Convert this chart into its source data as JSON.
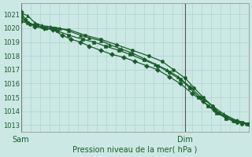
{
  "xlabel": "Pression niveau de la mer( hPa )",
  "bg_color": "#cce8e4",
  "grid_color": "#aad4cc",
  "line_color": "#1a5c2a",
  "spine_color": "#888888",
  "ylim": [
    1012.5,
    1021.8
  ],
  "yticks": [
    1013,
    1014,
    1015,
    1016,
    1017,
    1018,
    1019,
    1020,
    1021
  ],
  "xtick_labels": [
    "Sam",
    "Dim"
  ],
  "xtick_positions": [
    0.0,
    0.72
  ],
  "xlim": [
    0.0,
    1.0
  ],
  "series": [
    {
      "x": [
        0.0,
        0.02,
        0.06,
        0.1,
        0.14,
        0.18,
        0.22,
        0.26,
        0.3,
        0.35,
        0.4,
        0.45,
        0.5,
        0.55,
        0.6,
        0.65,
        0.7,
        0.75,
        0.8,
        0.85,
        0.9,
        0.95,
        1.0
      ],
      "y": [
        1021.2,
        1020.6,
        1020.1,
        1020.0,
        1019.9,
        1019.5,
        1019.2,
        1019.0,
        1018.7,
        1018.4,
        1018.1,
        1017.9,
        1017.6,
        1017.3,
        1017.0,
        1016.5,
        1016.0,
        1015.3,
        1014.7,
        1014.1,
        1013.6,
        1013.3,
        1013.1
      ],
      "marker": "D"
    },
    {
      "x": [
        0.0,
        0.03,
        0.06,
        0.09,
        0.13,
        0.17,
        0.21,
        0.26,
        0.3,
        0.35,
        0.39,
        0.44,
        0.49,
        0.54,
        0.59,
        0.64,
        0.69,
        0.74,
        0.79,
        0.84,
        0.89,
        0.95,
        1.0
      ],
      "y": [
        1021.1,
        1020.9,
        1020.4,
        1020.2,
        1020.1,
        1020.0,
        1019.8,
        1019.5,
        1019.3,
        1019.1,
        1018.8,
        1018.5,
        1018.2,
        1017.8,
        1017.4,
        1017.0,
        1016.5,
        1015.8,
        1015.0,
        1014.4,
        1013.8,
        1013.3,
        1013.1
      ],
      "marker": "^"
    },
    {
      "x": [
        0.0,
        0.03,
        0.07,
        0.11,
        0.16,
        0.21,
        0.27,
        0.32,
        0.37,
        0.43,
        0.48,
        0.54,
        0.6,
        0.65,
        0.7,
        0.74,
        0.78,
        0.82,
        0.86,
        0.9,
        0.94,
        0.97,
        1.0
      ],
      "y": [
        1020.8,
        1020.4,
        1020.2,
        1020.0,
        1019.8,
        1019.5,
        1019.2,
        1019.0,
        1018.7,
        1018.4,
        1018.1,
        1017.7,
        1017.3,
        1016.8,
        1016.3,
        1015.7,
        1015.0,
        1014.4,
        1013.9,
        1013.5,
        1013.3,
        1013.2,
        1013.1
      ],
      "marker": "s"
    },
    {
      "x": [
        0.0,
        0.04,
        0.09,
        0.15,
        0.21,
        0.28,
        0.35,
        0.42,
        0.49,
        0.56,
        0.62,
        0.67,
        0.72,
        0.76,
        0.8,
        0.84,
        0.87,
        0.9,
        0.93,
        0.95,
        0.97,
        0.99,
        1.0
      ],
      "y": [
        1020.5,
        1020.3,
        1020.1,
        1020.0,
        1019.9,
        1019.5,
        1019.2,
        1018.8,
        1018.4,
        1018.0,
        1017.6,
        1017.0,
        1016.4,
        1015.7,
        1015.0,
        1014.4,
        1013.9,
        1013.5,
        1013.3,
        1013.2,
        1013.1,
        1013.1,
        1013.1
      ],
      "marker": "o"
    }
  ],
  "marker_size": 3,
  "linewidth": 0.9,
  "ylabel_fontsize": 7,
  "ytick_fontsize": 6,
  "xtick_fontsize": 7
}
